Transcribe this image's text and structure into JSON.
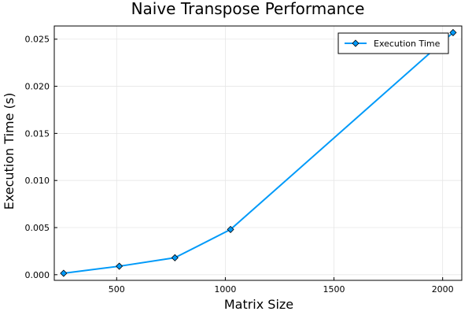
{
  "chart_data": {
    "type": "line",
    "title": "Naive Transpose Performance",
    "xlabel": "Matrix Size",
    "ylabel": "Execution Time (s)",
    "xlim": [
      213,
      2088
    ],
    "ylim": [
      -0.0006,
      0.0264
    ],
    "xticks": [
      500,
      1000,
      1500,
      2000
    ],
    "xtick_labels": [
      "500",
      "1000",
      "1500",
      "2000"
    ],
    "yticks": [
      0,
      0.005,
      0.01,
      0.015,
      0.02,
      0.025
    ],
    "ytick_labels": [
      "0.000",
      "0.005",
      "0.010",
      "0.015",
      "0.020",
      "0.025"
    ],
    "grid": true,
    "legend_position": "top-right",
    "series": [
      {
        "name": "Execution Time",
        "color": "#009af9",
        "marker": "diamond",
        "x": [
          256,
          512,
          768,
          1024,
          2048
        ],
        "y": [
          0.00015,
          0.0009,
          0.0018,
          0.0048,
          0.0257
        ]
      }
    ]
  }
}
